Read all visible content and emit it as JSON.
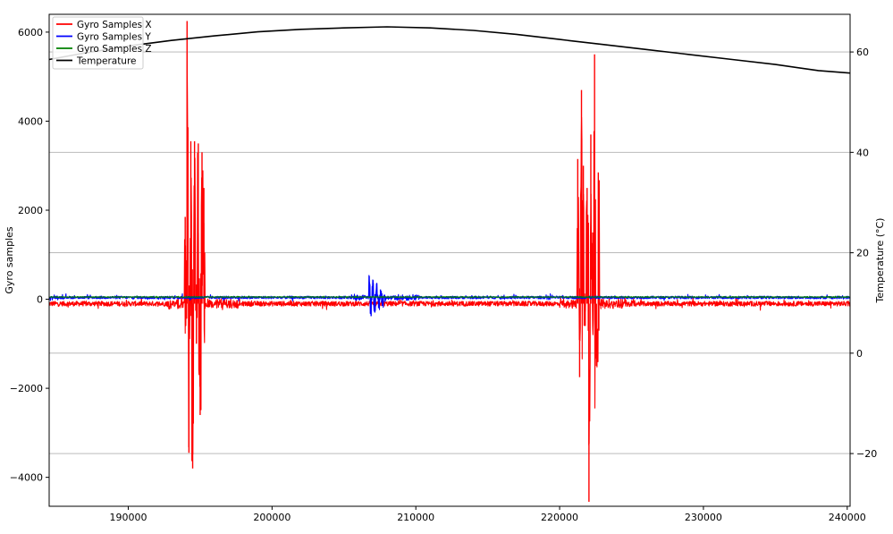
{
  "chart_data": {
    "type": "line",
    "title": "",
    "xlabel": "",
    "ylabel": "Gyro samples",
    "y2label": "Temperature (°C)",
    "xlim": [
      184500,
      240200
    ],
    "ylim": [
      -4650,
      6400
    ],
    "y2lim": [
      -30.5,
      67.5
    ],
    "x_ticks": [
      190000,
      200000,
      210000,
      220000,
      230000,
      240000
    ],
    "x_tick_labels": [
      "190000",
      "200000",
      "210000",
      "220000",
      "230000",
      "240000"
    ],
    "y_ticks": [
      -4000,
      -2000,
      0,
      2000,
      4000,
      6000
    ],
    "y_tick_labels": [
      "−4000",
      "−2000",
      "0",
      "2000",
      "4000",
      "6000"
    ],
    "y2_ticks": [
      -20,
      0,
      20,
      40,
      60
    ],
    "y2_tick_labels": [
      "−20",
      "0",
      "20",
      "40",
      "60"
    ],
    "grid": "horizontal lines at right-axis (temperature) ticks",
    "legend_position": "top-left",
    "series": [
      {
        "name": "Gyro Samples X",
        "color": "#ff0000",
        "axis": "left",
        "baseline": -100,
        "noise": 55,
        "bursts": [
          {
            "x": 193900,
            "values": [
              1850,
              6250,
              -3450,
              3550,
              -3800,
              3550,
              -1000,
              3500,
              -2600,
              3300,
              2500
            ]
          },
          {
            "x": 221200,
            "values": [
              3150,
              -1750,
              4700,
              3000,
              -600,
              2500,
              -4550,
              3700,
              1500,
              5500,
              -1500,
              2850
            ]
          }
        ]
      },
      {
        "name": "Gyro Samples Y",
        "color": "#0000ff",
        "axis": "left",
        "baseline": 40,
        "noise": 30,
        "bursts": [
          {
            "x": 206700,
            "values": [
              520,
              -380,
              430,
              -300,
              350,
              -200,
              220,
              -150
            ]
          }
        ]
      },
      {
        "name": "Gyro Samples Z",
        "color": "#008000",
        "axis": "left",
        "baseline": 50,
        "noise": 8
      },
      {
        "name": "Temperature",
        "color": "#000000",
        "axis": "right",
        "points": [
          [
            184500,
            58.5
          ],
          [
            187000,
            59.8
          ],
          [
            190000,
            61.2
          ],
          [
            193000,
            62.3
          ],
          [
            196000,
            63.2
          ],
          [
            199000,
            64.0
          ],
          [
            202000,
            64.5
          ],
          [
            205000,
            64.8
          ],
          [
            208000,
            65.0
          ],
          [
            211000,
            64.8
          ],
          [
            214000,
            64.3
          ],
          [
            217000,
            63.5
          ],
          [
            220000,
            62.5
          ],
          [
            223000,
            61.5
          ],
          [
            226000,
            60.5
          ],
          [
            229000,
            59.5
          ],
          [
            232000,
            58.5
          ],
          [
            235000,
            57.5
          ],
          [
            238000,
            56.3
          ],
          [
            240200,
            55.8
          ]
        ]
      }
    ]
  }
}
